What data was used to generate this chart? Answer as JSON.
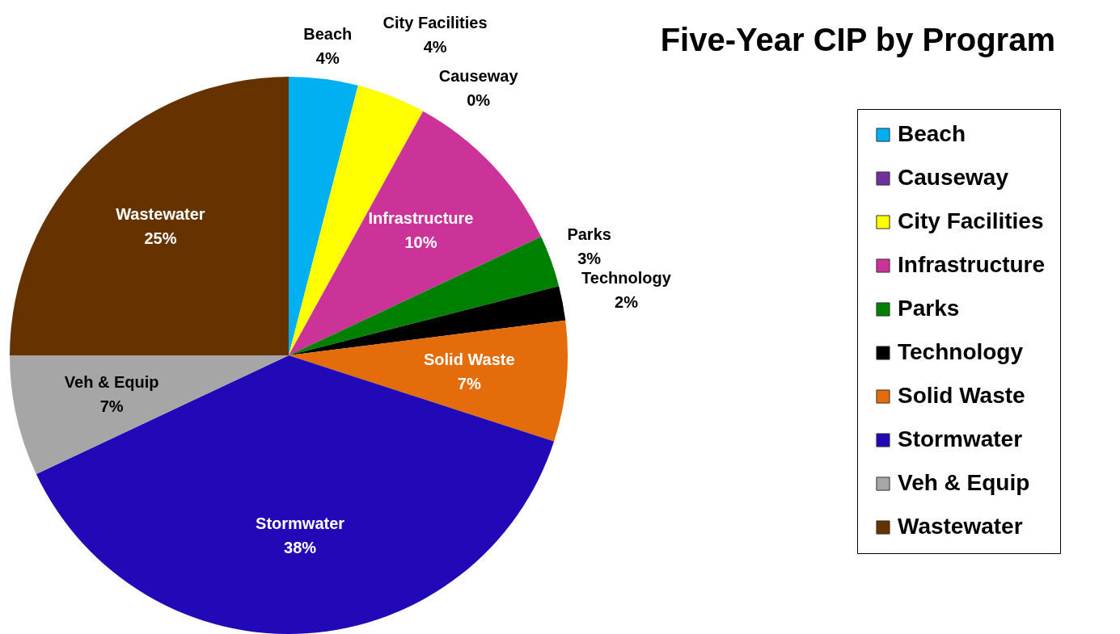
{
  "chart_data": {
    "type": "pie",
    "title": "Five-Year CIP by Program",
    "categories": [
      "Beach",
      "Causeway",
      "City Facilities",
      "Infrastructure",
      "Parks",
      "Technology",
      "Solid Waste",
      "Stormwater",
      "Veh & Equip",
      "Wastewater"
    ],
    "values": [
      4,
      0,
      4,
      10,
      3,
      2,
      7,
      38,
      7,
      25
    ],
    "value_labels": [
      "4%",
      "0%",
      "4%",
      "10%",
      "3%",
      "2%",
      "7%",
      "38%",
      "7%",
      "25%"
    ],
    "colors": [
      "#00b0f0",
      "#7030a0",
      "#ffff00",
      "#cc3399",
      "#008000",
      "#000000",
      "#e46c0a",
      "#2109b8",
      "#a6a6a6",
      "#663300"
    ],
    "legend": "right"
  }
}
